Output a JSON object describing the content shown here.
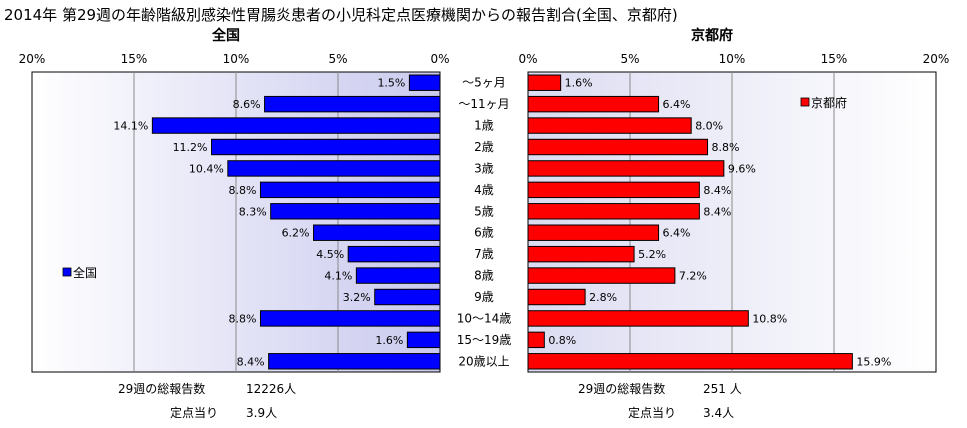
{
  "title": "2014年 第29週の年齢階級別感染性胃腸炎患者の小児科定点医療機関からの報告割合(全国、京都府)",
  "chart_data": [
    {
      "type": "bar",
      "orientation": "horizontal",
      "panel_title": "全国",
      "series": [
        {
          "name": "全国",
          "color": "#0000ff",
          "values": [
            1.5,
            8.6,
            14.1,
            11.2,
            10.4,
            8.8,
            8.3,
            6.2,
            4.5,
            4.1,
            3.2,
            8.8,
            1.6,
            8.4
          ]
        }
      ],
      "categories": [
        "～5ヶ月",
        "～11ヶ月",
        "1歳",
        "2歳",
        "3歳",
        "4歳",
        "5歳",
        "6歳",
        "7歳",
        "8歳",
        "9歳",
        "10～14歳",
        "15～19歳",
        "20歳以上"
      ],
      "xlim": [
        0,
        20
      ],
      "x_reversed": true,
      "ticks": [
        "20%",
        "15%",
        "10%",
        "5%",
        "0%"
      ],
      "data_labels": [
        "1.5%",
        "8.6%",
        "14.1%",
        "11.2%",
        "10.4%",
        "8.8%",
        "8.3%",
        "6.2%",
        "4.5%",
        "4.1%",
        "3.2%",
        "8.8%",
        "1.6%",
        "8.4%"
      ],
      "legend": {
        "label": "全国",
        "placement": "left"
      },
      "grid": true
    },
    {
      "type": "bar",
      "orientation": "horizontal",
      "panel_title": "京都府",
      "series": [
        {
          "name": "京都府",
          "color": "#ff0000",
          "values": [
            1.6,
            6.4,
            8.0,
            8.8,
            9.6,
            8.4,
            8.4,
            6.4,
            5.2,
            7.2,
            2.8,
            10.8,
            0.8,
            15.9
          ]
        }
      ],
      "categories": [
        "～5ヶ月",
        "～11ヶ月",
        "1歳",
        "2歳",
        "3歳",
        "4歳",
        "5歳",
        "6歳",
        "7歳",
        "8歳",
        "9歳",
        "10～14歳",
        "15～19歳",
        "20歳以上"
      ],
      "xlim": [
        0,
        20
      ],
      "x_reversed": false,
      "ticks": [
        "0%",
        "5%",
        "10%",
        "15%",
        "20%"
      ],
      "data_labels": [
        "1.6%",
        "6.4%",
        "8.0%",
        "8.8%",
        "9.6%",
        "8.4%",
        "8.4%",
        "6.4%",
        "5.2%",
        "7.2%",
        "2.8%",
        "10.8%",
        "0.8%",
        "15.9%"
      ],
      "legend": {
        "label": "京都府",
        "placement": "top-right"
      },
      "grid": true
    }
  ],
  "stats": {
    "left": {
      "total_label": "29週の総報告数",
      "total_value": "12226人",
      "per_label": "定点当り",
      "per_value": "3.9人"
    },
    "right": {
      "total_label": "29週の総報告数",
      "total_value": "251 人",
      "per_label": "定点当り",
      "per_value": "3.4人"
    }
  }
}
